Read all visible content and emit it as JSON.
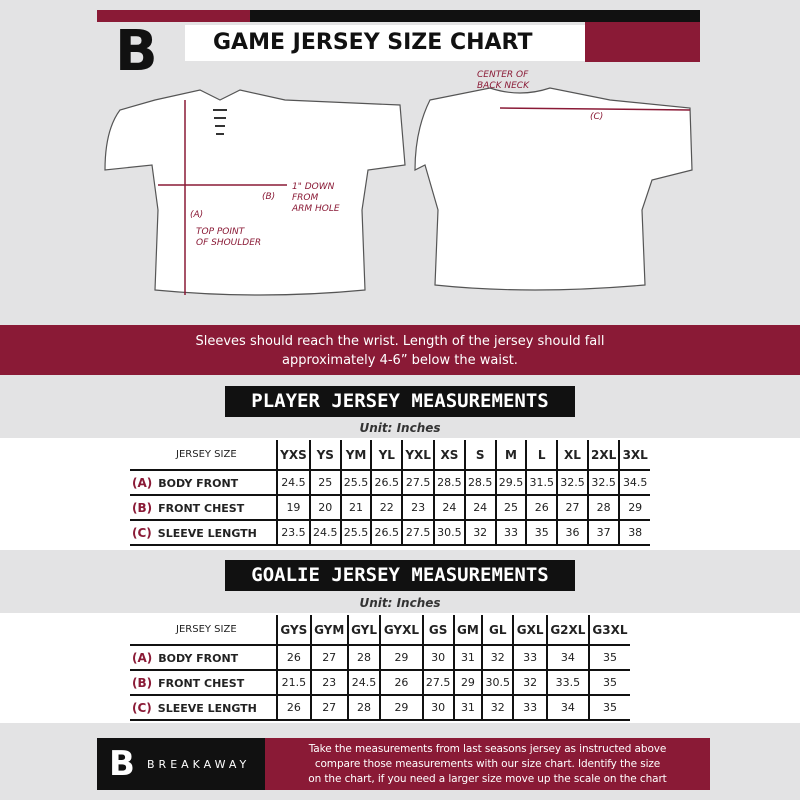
{
  "header": {
    "title": "GAME JERSEY SIZE CHART",
    "logo_letter": "B"
  },
  "colors": {
    "accent": "#8a1a36",
    "dark": "#111111"
  },
  "diagram": {
    "center_back_neck": [
      "CENTER OF",
      "BACK NECK"
    ],
    "label_a": "(A)",
    "label_b": "(B)",
    "label_c": "(C)",
    "top_point": [
      "TOP POINT",
      "OF SHOULDER"
    ],
    "arm_hole": [
      "1\" DOWN",
      "FROM",
      "ARM HOLE"
    ]
  },
  "instructions": [
    "Sleeves should reach the wrist. Length of the jersey should fall",
    "approximately 4-6” below the waist."
  ],
  "player": {
    "title": "PLAYER JERSEY MEASUREMENTS",
    "unit": "Unit: Inches",
    "header_label": "JERSEY SIZE",
    "sizes": [
      "YXS",
      "YS",
      "YM",
      "YL",
      "YXL",
      "XS",
      "S",
      "M",
      "L",
      "XL",
      "2XL",
      "3XL"
    ],
    "rows": [
      {
        "key": "(A)",
        "label": "BODY FRONT",
        "values": [
          "24.5",
          "25",
          "25.5",
          "26.5",
          "27.5",
          "28.5",
          "28.5",
          "29.5",
          "31.5",
          "32.5",
          "32.5",
          "34.5"
        ]
      },
      {
        "key": "(B)",
        "label": "FRONT CHEST",
        "values": [
          "19",
          "20",
          "21",
          "22",
          "23",
          "24",
          "24",
          "25",
          "26",
          "27",
          "28",
          "29"
        ]
      },
      {
        "key": "(C)",
        "label": "SLEEVE LENGTH",
        "values": [
          "23.5",
          "24.5",
          "25.5",
          "26.5",
          "27.5",
          "30.5",
          "32",
          "33",
          "35",
          "36",
          "37",
          "38"
        ]
      }
    ]
  },
  "goalie": {
    "title": "GOALIE JERSEY MEASUREMENTS",
    "unit": "Unit: Inches",
    "header_label": "JERSEY SIZE",
    "sizes": [
      "GYS",
      "GYM",
      "GYL",
      "GYXL",
      "GS",
      "GM",
      "GL",
      "GXL",
      "G2XL",
      "G3XL"
    ],
    "rows": [
      {
        "key": "(A)",
        "label": "BODY FRONT",
        "values": [
          "26",
          "27",
          "28",
          "29",
          "30",
          "31",
          "32",
          "33",
          "34",
          "35"
        ]
      },
      {
        "key": "(B)",
        "label": "FRONT CHEST",
        "values": [
          "21.5",
          "23",
          "24.5",
          "26",
          "27.5",
          "29",
          "30.5",
          "32",
          "33.5",
          "35"
        ]
      },
      {
        "key": "(C)",
        "label": "SLEEVE LENGTH",
        "values": [
          "26",
          "27",
          "28",
          "29",
          "30",
          "31",
          "32",
          "33",
          "34",
          "35"
        ]
      }
    ]
  },
  "footer": {
    "brand": "BREAKAWAY",
    "text": [
      "Take the measurements from last seasons jersey as instructed above",
      "compare those measurements  with our size chart. Identify the size",
      "on the chart, if you need a larger size move up the scale on the chart"
    ]
  }
}
